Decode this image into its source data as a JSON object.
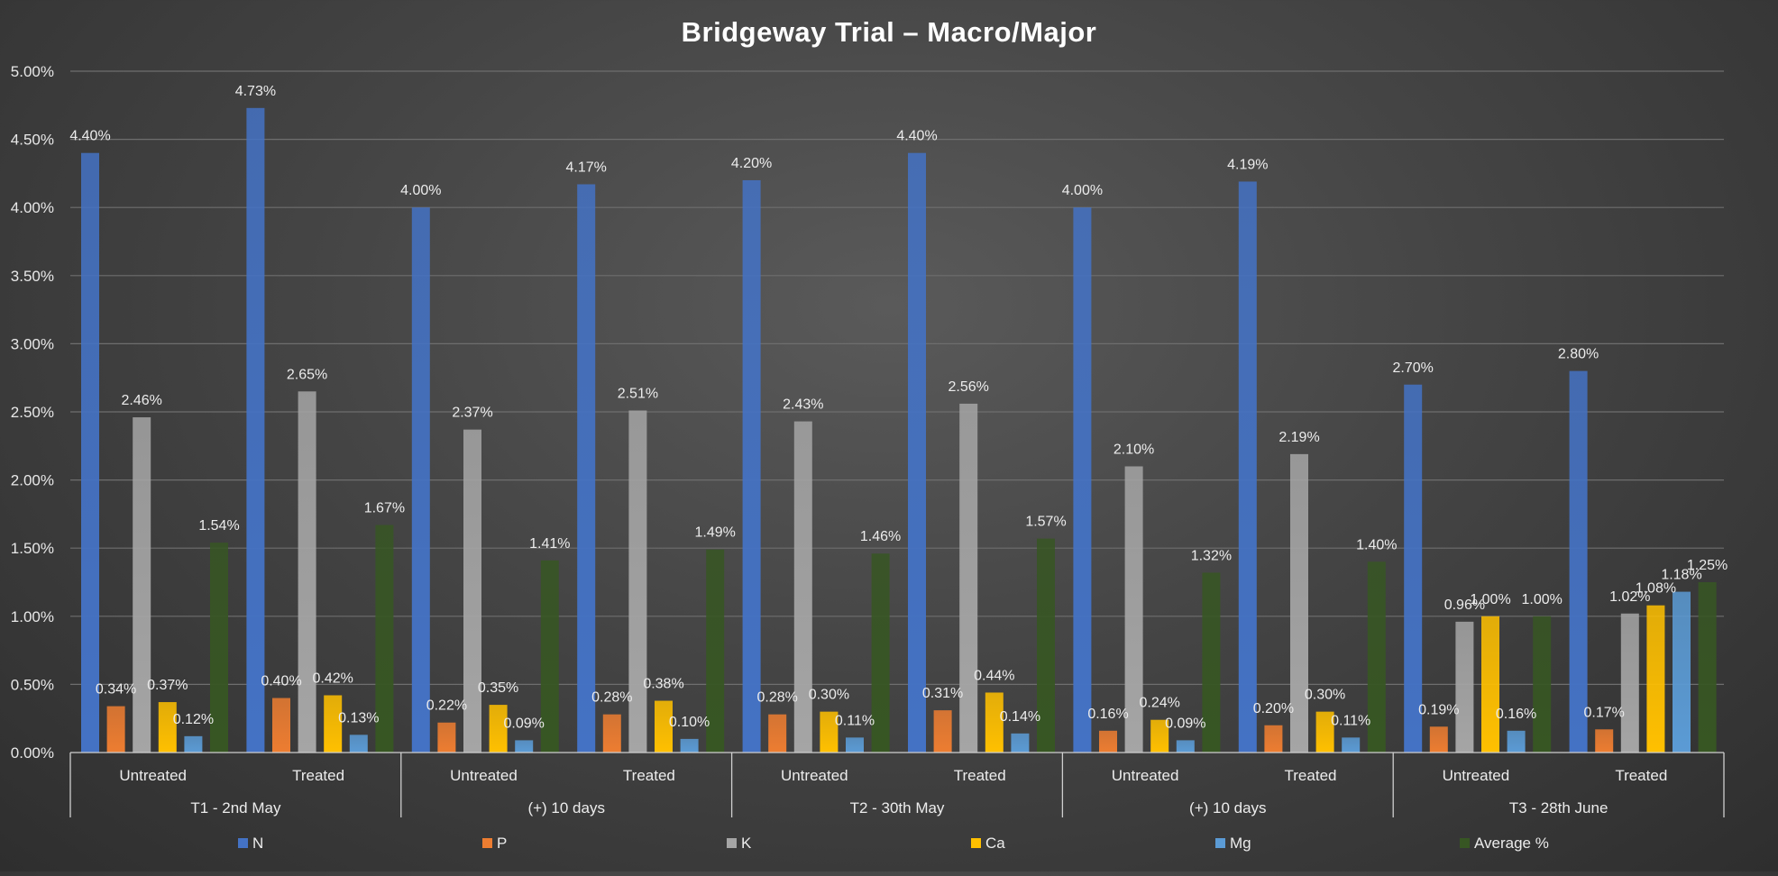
{
  "chart_data": {
    "type": "bar",
    "title": "Bridgeway Trial – Macro/Major",
    "ylim": [
      0,
      5
    ],
    "y_ticks": [
      "0.00%",
      "0.50%",
      "1.00%",
      "1.50%",
      "2.00%",
      "2.50%",
      "3.00%",
      "3.50%",
      "4.00%",
      "4.50%",
      "5.00%"
    ],
    "grid": true,
    "legend_position": "bottom",
    "groups": [
      {
        "label": "T1 - 2nd May",
        "categories": [
          "Untreated",
          "Treated"
        ]
      },
      {
        "label": "(+) 10 days",
        "categories": [
          "Untreated",
          "Treated"
        ]
      },
      {
        "label": "T2 - 30th May",
        "categories": [
          "Untreated",
          "Treated"
        ]
      },
      {
        "label": "(+) 10 days",
        "categories": [
          "Untreated",
          "Treated"
        ]
      },
      {
        "label": "T3 - 28th June",
        "categories": [
          "Untreated",
          "Treated"
        ]
      }
    ],
    "series": [
      {
        "name": "N",
        "color": "#4472c4",
        "values": [
          4.4,
          4.73,
          4.0,
          4.17,
          4.2,
          4.4,
          4.0,
          4.19,
          2.7,
          2.8
        ],
        "labels": [
          "4.40%",
          "4.73%",
          "4.00%",
          "4.17%",
          "4.20%",
          "4.40%",
          "4.00%",
          "4.19%",
          "2.70%",
          "2.80%"
        ]
      },
      {
        "name": "P",
        "color": "#ed7d31",
        "values": [
          0.34,
          0.4,
          0.22,
          0.28,
          0.28,
          0.31,
          0.16,
          0.2,
          0.19,
          0.17
        ],
        "labels": [
          "0.34%",
          "0.40%",
          "0.22%",
          "0.28%",
          "0.28%",
          "0.31%",
          "0.16%",
          "0.20%",
          "0.19%",
          "0.17%"
        ]
      },
      {
        "name": "K",
        "color": "#a5a5a5",
        "values": [
          2.46,
          2.65,
          2.37,
          2.51,
          2.43,
          2.56,
          2.1,
          2.19,
          0.96,
          1.02
        ],
        "labels": [
          "2.46%",
          "2.65%",
          "2.37%",
          "2.51%",
          "2.43%",
          "2.56%",
          "2.10%",
          "2.19%",
          "0.96%",
          "1.02%"
        ]
      },
      {
        "name": "Ca",
        "color": "#ffc000",
        "values": [
          0.37,
          0.42,
          0.35,
          0.38,
          0.3,
          0.44,
          0.24,
          0.3,
          1.0,
          1.08
        ],
        "labels": [
          "0.37%",
          "0.42%",
          "0.35%",
          "0.38%",
          "0.30%",
          "0.44%",
          "0.24%",
          "0.30%",
          "1.00%",
          "1.08%"
        ]
      },
      {
        "name": "Mg",
        "color": "#5b9bd5",
        "values": [
          0.12,
          0.13,
          0.09,
          0.1,
          0.11,
          0.14,
          0.09,
          0.11,
          0.16,
          1.18
        ],
        "labels": [
          "0.12%",
          "0.13%",
          "0.09%",
          "0.10%",
          "0.11%",
          "0.14%",
          "0.09%",
          "0.11%",
          "0.16%",
          "1.18%"
        ]
      },
      {
        "name": "Average %",
        "color": "#375623",
        "values": [
          1.54,
          1.67,
          1.41,
          1.49,
          1.46,
          1.57,
          1.32,
          1.4,
          1.0,
          1.25
        ],
        "labels": [
          "1.54%",
          "1.67%",
          "1.41%",
          "1.49%",
          "1.46%",
          "1.57%",
          "1.32%",
          "1.40%",
          "1.00%",
          "1.25%"
        ]
      }
    ]
  }
}
